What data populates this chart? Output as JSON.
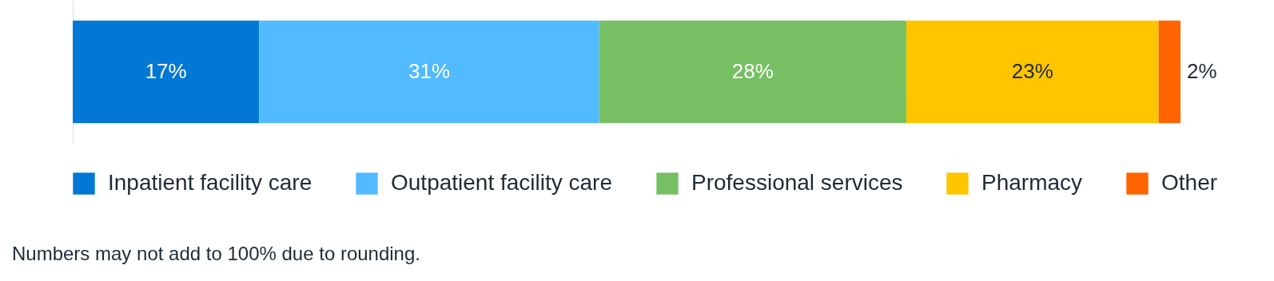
{
  "chart_data": {
    "type": "bar",
    "orientation": "horizontal",
    "stacked": true,
    "categories": [
      null
    ],
    "series": [
      {
        "name": "Inpatient facility care",
        "color": "#0277d4",
        "values": [
          17
        ],
        "value_labels": [
          "17%"
        ]
      },
      {
        "name": "Outpatient facility care",
        "color": "#52bbff",
        "values": [
          31
        ],
        "value_labels": [
          "31%"
        ]
      },
      {
        "name": "Professional services",
        "color": "#76bf63",
        "values": [
          28
        ],
        "value_labels": [
          "28%"
        ]
      },
      {
        "name": "Pharmacy",
        "color": "#ffc500",
        "values": [
          23
        ],
        "value_labels": [
          "23%"
        ]
      },
      {
        "name": "Other",
        "color": "#ff6400",
        "values": [
          2
        ],
        "value_labels": [
          "2%"
        ]
      }
    ],
    "legend": "bottom",
    "grid": false,
    "annotations": [
      "Numbers may not add to 100% due to rounding."
    ]
  }
}
